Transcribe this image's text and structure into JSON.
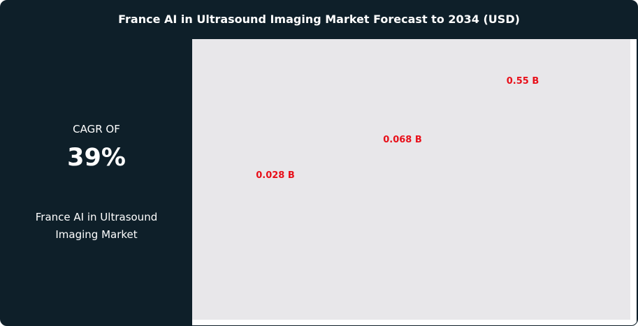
{
  "title": "France AI in Ultrasound Imaging Market Forecast to 2034 (USD)",
  "summary": {
    "cagr_label": "CAGR OF",
    "cagr_value": "39%",
    "market_name": "France AI in Ultrasound Imaging Market"
  },
  "colors": {
    "background": "#0e1f29",
    "plot": "#e8e7ea",
    "label": "#e8101a"
  },
  "chart_data": {
    "type": "bar",
    "title": "France AI in Ultrasound Imaging Market Forecast to 2034 (USD)",
    "values": [
      0.028,
      0.068,
      0.55
    ],
    "data_labels": [
      "0.028 B",
      "0.068 B",
      "0.55 B"
    ],
    "unit": "B USD",
    "grid": false
  }
}
